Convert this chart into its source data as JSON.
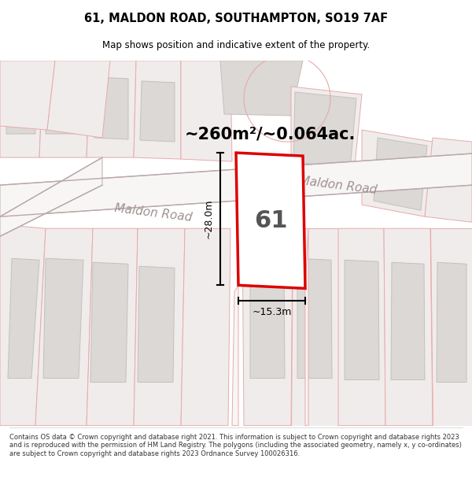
{
  "title": "61, MALDON ROAD, SOUTHAMPTON, SO19 7AF",
  "subtitle": "Map shows position and indicative extent of the property.",
  "footer": "Contains OS data © Crown copyright and database right 2021. This information is subject to Crown copyright and database rights 2023 and is reproduced with the permission of HM Land Registry. The polygons (including the associated geometry, namely x, y co-ordinates) are subject to Crown copyright and database rights 2023 Ordnance Survey 100026316.",
  "area_label": "~260m²/~0.064ac.",
  "plot_number": "61",
  "dim_width": "~15.3m",
  "dim_height": "~28.0m",
  "map_bg": "#f7f4f4",
  "road_label_upper": "Maldon Road",
  "road_label_lower": "Maldon Road",
  "plot_fill": "#ffffff",
  "plot_edge": "#dd0000",
  "parcel_fill": "#f0ecec",
  "parcel_edge": "#e8aaaa",
  "building_fill": "#dbd8d5",
  "building_edge": "#c5c0bc",
  "road_fill": "#f0eded",
  "road_edge": "#d0c8c8"
}
